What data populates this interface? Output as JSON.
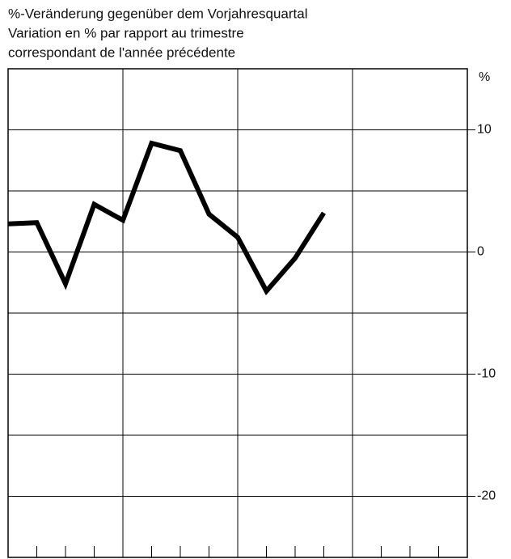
{
  "chart_data": {
    "type": "line",
    "title": [
      "%-Veränderung gegenüber dem Vorjahresquartal",
      "Variation en % par rapport au trimestre",
      "correspondant de l'année précédente"
    ],
    "y_unit": "%",
    "x": [
      0,
      1,
      2,
      3,
      4,
      5,
      6,
      7,
      8,
      9,
      10,
      11
    ],
    "series": [
      {
        "color": "#000000",
        "values": [
          2.3,
          2.4,
          -2.6,
          3.9,
          2.6,
          8.9,
          8.3,
          3.1,
          1.2,
          -3.2,
          -0.5,
          3.2
        ]
      }
    ],
    "xlim": [
      0,
      16
    ],
    "xticks": [
      1,
      2,
      3,
      4,
      5,
      6,
      7,
      8,
      9,
      10,
      11,
      12,
      13,
      14,
      15
    ],
    "xgrid": [
      4,
      8,
      12
    ],
    "ylim": [
      -25,
      15
    ],
    "yticks": [
      10,
      0,
      -10,
      -20
    ],
    "minor_yticks": [
      5,
      -5,
      -15
    ],
    "grid": true
  }
}
